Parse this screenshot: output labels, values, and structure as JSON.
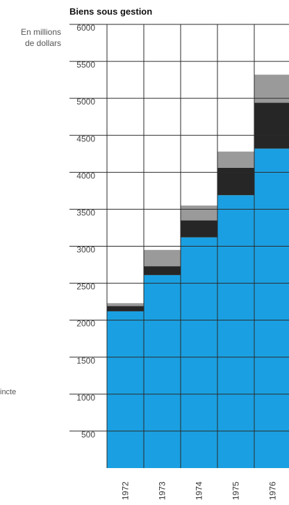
{
  "chart_data": {
    "type": "bar",
    "stacked": true,
    "title": "Biens sous gestion",
    "ylabel": "En millions de dollars",
    "ylabel_lines": [
      "En millions",
      "de dollars"
    ],
    "side_label": "incte",
    "categories": [
      "1972",
      "1973",
      "1974",
      "1975",
      "1976"
    ],
    "ylim": [
      0,
      6000
    ],
    "yticks": [
      500,
      1000,
      1500,
      2000,
      2500,
      3000,
      3500,
      4000,
      4500,
      5000,
      5500,
      6000
    ],
    "grid": true,
    "series": [
      {
        "color": "#1aa0e2",
        "values": [
          2120,
          2610,
          3120,
          3690,
          4320
        ]
      },
      {
        "color": "#262626",
        "values": [
          70,
          120,
          230,
          370,
          620
        ]
      },
      {
        "color": "#9a9a9a",
        "values": [
          40,
          220,
          200,
          220,
          380
        ]
      }
    ]
  }
}
